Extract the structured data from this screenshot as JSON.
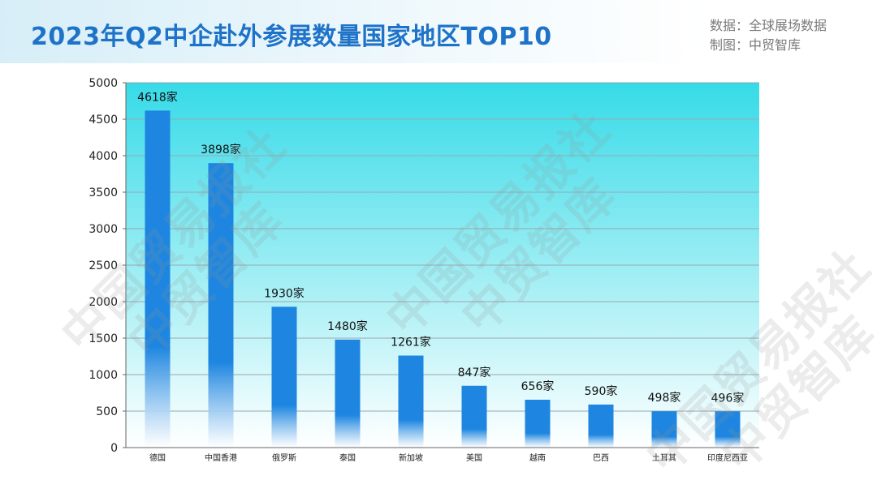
{
  "header": {
    "title": "2023年Q2中企赴外参展数量国家地区TOP10",
    "source_line1": "数据：全球展场数据",
    "source_line2": "制图：中贸智库"
  },
  "watermarks": [
    "中国贸易报社",
    "中贸智库"
  ],
  "colors": {
    "bar": "#1e86e0",
    "plot_bg_top": "#36dbe8",
    "plot_bg_bottom": "#ffffff",
    "title": "#1e73c8"
  },
  "chart_data": {
    "type": "bar",
    "categories": [
      "德国",
      "中国香港",
      "俄罗斯",
      "泰国",
      "新加坡",
      "美国",
      "越南",
      "巴西",
      "土耳其",
      "印度尼西亚"
    ],
    "values": [
      4618,
      3898,
      1930,
      1480,
      1261,
      847,
      656,
      590,
      498,
      496
    ],
    "data_labels": [
      "4618家",
      "3898家",
      "1930家",
      "1480家",
      "1261家",
      "847家",
      "656家",
      "590家",
      "498家",
      "496家"
    ],
    "ylim": [
      0,
      5000
    ],
    "yticks": [
      "0",
      "500",
      "1000",
      "1500",
      "2000",
      "2500",
      "3000",
      "3500",
      "4000",
      "4500",
      "5000"
    ],
    "grid": true,
    "xlabel": "",
    "ylabel": ""
  }
}
